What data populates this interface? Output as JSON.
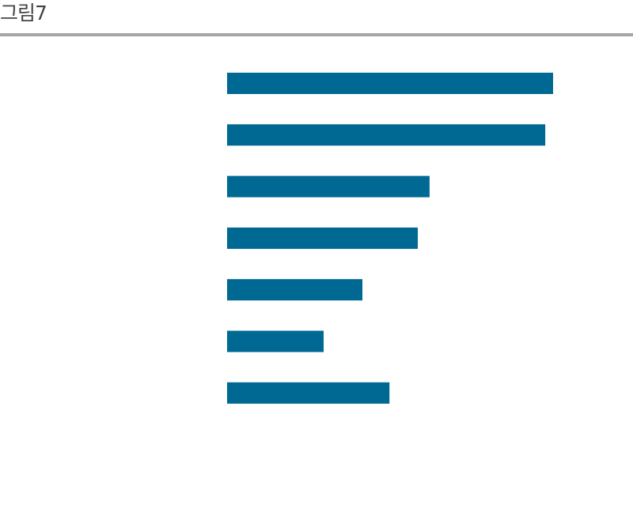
{
  "figure": {
    "label": "그림7"
  },
  "colors": {
    "bar": "#006993",
    "rule": "#a6a6a6",
    "label": "#444444"
  },
  "chart_data": {
    "type": "bar",
    "orientation": "horizontal",
    "title": "",
    "xlabel": "",
    "ylabel": "",
    "categories": [
      "",
      "",
      "",
      "",
      "",
      "",
      ""
    ],
    "values": [
      100,
      97.6,
      62.1,
      58.5,
      41.5,
      29.6,
      49.8
    ],
    "xlim": [
      0,
      100
    ],
    "grid": false,
    "legend": "none"
  }
}
